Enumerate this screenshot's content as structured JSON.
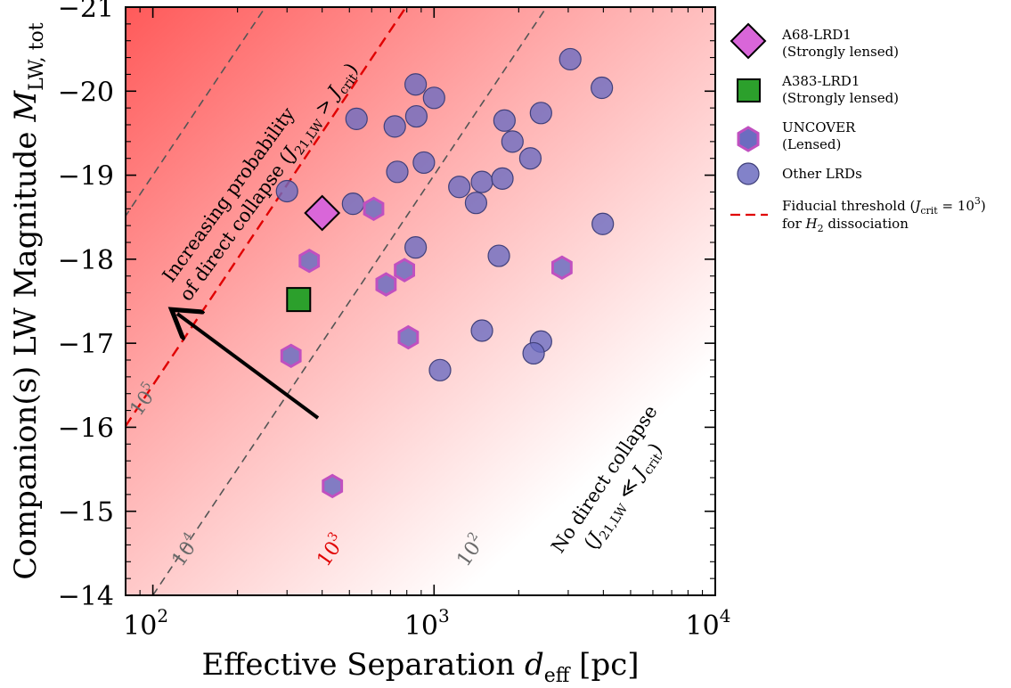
{
  "chart_data": {
    "type": "scatter",
    "xlabel_main": "Effective Separation ",
    "xlabel_var": "d",
    "xlabel_sub": "eff",
    "xlabel_unit": " [pc]",
    "ylabel_main": "Companion(s) LW Magnitude ",
    "ylabel_var": "M",
    "ylabel_sub": "LW, tot",
    "x_scale": "log",
    "xlim": [
      80,
      10000
    ],
    "ylim": [
      -14,
      -21
    ],
    "y_inverted": true,
    "grid": false,
    "legend_placement": "outside-right",
    "x_ticks": [
      {
        "value": 100,
        "base": "10",
        "exp": "2"
      },
      {
        "value": 1000,
        "base": "10",
        "exp": "3"
      },
      {
        "value": 10000,
        "base": "10",
        "exp": "4"
      }
    ],
    "y_ticks": [
      {
        "value": -21,
        "label": "−21"
      },
      {
        "value": -20,
        "label": "−20"
      },
      {
        "value": -19,
        "label": "−19"
      },
      {
        "value": -18,
        "label": "−18"
      },
      {
        "value": -17,
        "label": "−17"
      },
      {
        "value": -16,
        "label": "−16"
      },
      {
        "value": -15,
        "label": "−15"
      },
      {
        "value": -14,
        "label": "−14"
      }
    ],
    "series": [
      {
        "name": "A68-LRD1",
        "name_note": "(Strongly lensed)",
        "marker": "diamond",
        "color": "#d966d9",
        "edge": "#000000",
        "points": [
          [
            400,
            -18.55
          ]
        ]
      },
      {
        "name": "A383-LRD1",
        "name_note": "(Strongly lensed)",
        "marker": "square",
        "color": "#2ca02c",
        "edge": "#000000",
        "points": [
          [
            330,
            -17.52
          ]
        ]
      },
      {
        "name": "UNCOVER",
        "name_note": "(Lensed)",
        "marker": "hexagon",
        "color": "#6c6cc0",
        "edge": "#c050c0",
        "points": [
          [
            610,
            -18.6
          ],
          [
            360,
            -17.98
          ],
          [
            675,
            -17.7
          ],
          [
            785,
            -17.87
          ],
          [
            2850,
            -17.9
          ],
          [
            310,
            -16.85
          ],
          [
            810,
            -17.07
          ],
          [
            435,
            -15.3
          ]
        ]
      },
      {
        "name": "Other LRDs",
        "marker": "circle",
        "color": "#6c6cc0",
        "edge": "#40407a",
        "points": [
          [
            530,
            -19.67
          ],
          [
            725,
            -19.58
          ],
          [
            860,
            -20.08
          ],
          [
            865,
            -19.7
          ],
          [
            1000,
            -19.92
          ],
          [
            740,
            -19.04
          ],
          [
            920,
            -19.15
          ],
          [
            515,
            -18.66
          ],
          [
            300,
            -18.81
          ],
          [
            860,
            -18.14
          ],
          [
            1230,
            -18.86
          ],
          [
            1410,
            -18.67
          ],
          [
            1480,
            -18.92
          ],
          [
            1750,
            -18.96
          ],
          [
            1780,
            -19.65
          ],
          [
            1900,
            -19.4
          ],
          [
            2200,
            -19.2
          ],
          [
            2400,
            -19.74
          ],
          [
            3050,
            -20.38
          ],
          [
            3950,
            -20.04
          ],
          [
            3980,
            -18.42
          ],
          [
            1700,
            -18.04
          ],
          [
            1480,
            -17.15
          ],
          [
            1050,
            -16.68
          ],
          [
            2400,
            -17.02
          ],
          [
            2260,
            -16.88
          ]
        ]
      }
    ],
    "threshold_legend": {
      "line1_a": "Fiducial threshold (",
      "line1_var": "J",
      "line1_sub": "crit",
      "line1_eq": " = 10",
      "line1_sup": "3",
      "line1_close": ")",
      "line2_a": "for ",
      "line2_var": "H",
      "line2_sub": "2",
      "line2_b": " dissociation"
    },
    "contours": [
      {
        "base": "10",
        "exp": "5",
        "color": "#555555",
        "style": "dashed",
        "offset_mag": 7.5
      },
      {
        "base": "10",
        "exp": "4",
        "color": "#555555",
        "style": "dashed",
        "offset_mag": 5.0
      },
      {
        "base": "10",
        "exp": "3",
        "color": "#e00000",
        "style": "dashed",
        "offset_mag": 2.5
      },
      {
        "base": "10",
        "exp": "2",
        "color": "#555555",
        "style": "dashed",
        "offset_mag": 0.0
      }
    ],
    "annotations": {
      "top_left_line1": "Increasing probability",
      "top_left_line2_a": "of direct collapse (",
      "top_left_line2_var": "J",
      "top_left_line2_sub": "21,LW",
      "top_left_line2_gt": " > ",
      "top_left_line2_var2": "J",
      "top_left_line2_sub2": "crit",
      "top_left_line2_close": ")",
      "bottom_right_line1": "No direct collapse",
      "bottom_right_line2_a": "(",
      "bottom_right_line2_var": "J",
      "bottom_right_line2_sub": "21,LW",
      "bottom_right_line2_ll": " ≪ ",
      "bottom_right_line2_var2": "J",
      "bottom_right_line2_sub2": "crit",
      "bottom_right_line2_close": ")"
    },
    "colors": {
      "gradient_strong": "#ff5555",
      "gradient_weak": "#ffffff",
      "arrow": "#000000"
    }
  }
}
